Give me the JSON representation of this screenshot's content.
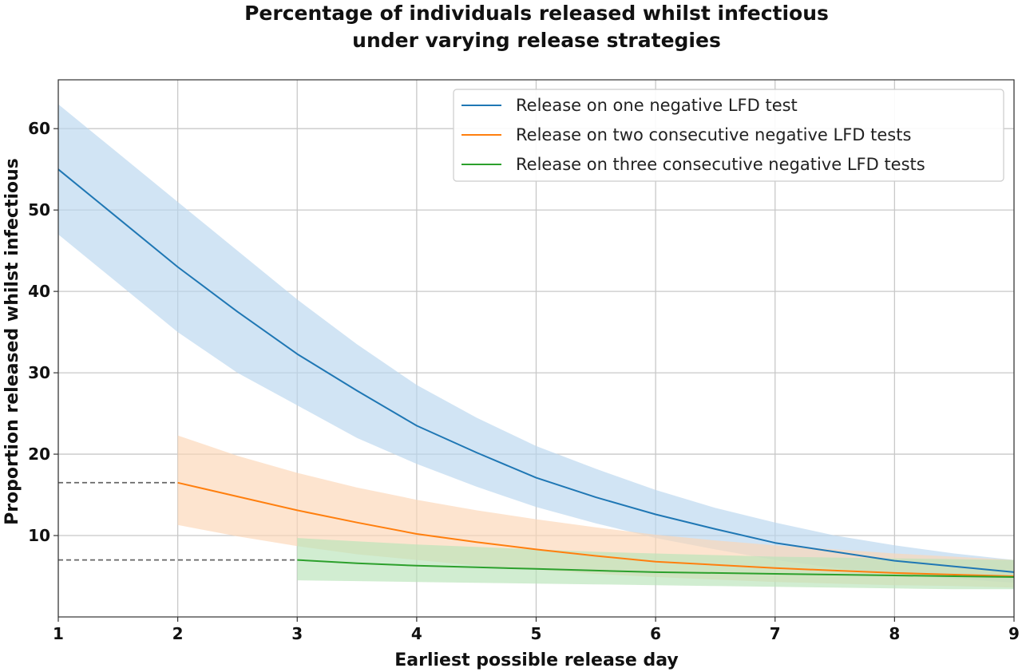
{
  "chart_data": {
    "type": "line",
    "title_lines": [
      "Percentage of individuals released whilst infectious",
      "under varying release strategies"
    ],
    "xlabel": "Earliest possible release day",
    "ylabel": "Proportion released whilst infectious",
    "xlim": [
      1,
      9
    ],
    "ylim": [
      0,
      66
    ],
    "xticks": [
      1,
      2,
      3,
      4,
      5,
      6,
      7,
      8,
      9
    ],
    "yticks": [
      10,
      20,
      30,
      40,
      50,
      60
    ],
    "grid": true,
    "legend_position": "top-right",
    "series": [
      {
        "name": "Release on one negative LFD test",
        "color": "#1f77b4",
        "band_color": "#b9d6ee",
        "x": [
          1,
          1.5,
          2,
          2.5,
          3,
          3.5,
          4,
          4.5,
          5,
          5.5,
          6,
          6.5,
          7,
          7.5,
          8,
          8.5,
          9
        ],
        "values": [
          55,
          49,
          43,
          37.5,
          32.3,
          27.8,
          23.5,
          20.2,
          17.1,
          14.7,
          12.6,
          10.8,
          9.1,
          8.0,
          6.9,
          6.2,
          5.5
        ],
        "lower": [
          47,
          41,
          35,
          30,
          26,
          22,
          18.8,
          16,
          13.5,
          11.5,
          9.7,
          8.3,
          7.0,
          6.0,
          5.3,
          4.7,
          4.2
        ],
        "upper": [
          63,
          57,
          51,
          45,
          39,
          33.5,
          28.5,
          24.5,
          21,
          18.2,
          15.6,
          13.4,
          11.6,
          10.0,
          8.8,
          7.8,
          7.0
        ]
      },
      {
        "name": "Release on two consecutive negative LFD tests",
        "color": "#ff7f0e",
        "band_color": "#fcd5b5",
        "x": [
          2,
          2.5,
          3,
          3.5,
          4,
          4.5,
          5,
          5.5,
          6,
          6.5,
          7,
          7.5,
          8,
          8.5,
          9
        ],
        "values": [
          16.5,
          14.8,
          13.1,
          11.6,
          10.2,
          9.2,
          8.3,
          7.5,
          6.8,
          6.4,
          6.0,
          5.7,
          5.4,
          5.2,
          5.0
        ],
        "lower": [
          11.3,
          9.9,
          8.7,
          7.7,
          7.0,
          6.3,
          5.8,
          5.3,
          4.9,
          4.6,
          4.3,
          4.1,
          3.9,
          3.8,
          3.6
        ],
        "upper": [
          22.3,
          19.8,
          17.7,
          15.9,
          14.4,
          13.1,
          12.0,
          11.0,
          10.1,
          9.4,
          8.8,
          8.3,
          7.8,
          7.4,
          7.0
        ]
      },
      {
        "name": "Release on three consecutive negative LFD tests",
        "color": "#2ca02c",
        "band_color": "#b8e3b8",
        "x": [
          3,
          3.5,
          4,
          4.5,
          5,
          5.5,
          6,
          6.5,
          7,
          7.5,
          8,
          8.5,
          9
        ],
        "values": [
          7.0,
          6.6,
          6.3,
          6.1,
          5.9,
          5.7,
          5.5,
          5.4,
          5.3,
          5.2,
          5.1,
          5.0,
          4.9
        ],
        "lower": [
          4.5,
          4.4,
          4.3,
          4.2,
          4.1,
          4.0,
          3.9,
          3.8,
          3.7,
          3.6,
          3.5,
          3.4,
          3.4
        ],
        "upper": [
          9.7,
          9.3,
          8.9,
          8.6,
          8.3,
          8.0,
          7.8,
          7.6,
          7.4,
          7.3,
          7.2,
          7.1,
          7.0
        ]
      }
    ],
    "reference_lines": [
      {
        "y": 16.5,
        "x_end": 2,
        "color": "#666666"
      },
      {
        "y": 7.0,
        "x_end": 3,
        "color": "#666666"
      }
    ]
  }
}
